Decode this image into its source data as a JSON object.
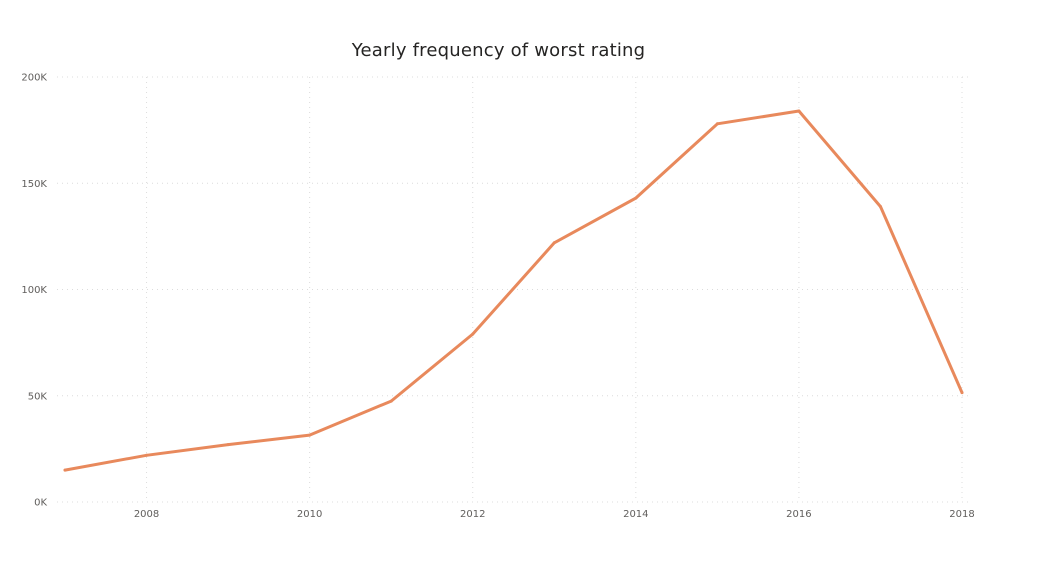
{
  "chart_data": {
    "type": "line",
    "title": "Yearly frequency of worst rating",
    "xlabel": "",
    "ylabel": "",
    "x": [
      2007,
      2008,
      2009,
      2010,
      2011,
      2012,
      2013,
      2014,
      2015,
      2016,
      2017,
      2018
    ],
    "series": [
      {
        "values": [
          15000,
          22000,
          27000,
          31500,
          47500,
          79000,
          122000,
          143000,
          178000,
          184000,
          139000,
          51500
        ],
        "color": "#e8895c"
      }
    ],
    "x_ticks": [
      "2008",
      "2010",
      "2012",
      "2014",
      "2016",
      "2018"
    ],
    "x_tick_values": [
      2008,
      2010,
      2012,
      2014,
      2016,
      2018
    ],
    "y_ticks": [
      "0K",
      "50K",
      "100K",
      "150K",
      "200K"
    ],
    "y_tick_values": [
      0,
      50000,
      100000,
      150000,
      200000
    ],
    "xlim": [
      2007,
      2018
    ],
    "ylim": [
      0,
      200000
    ],
    "grid": true,
    "legend": "none"
  }
}
